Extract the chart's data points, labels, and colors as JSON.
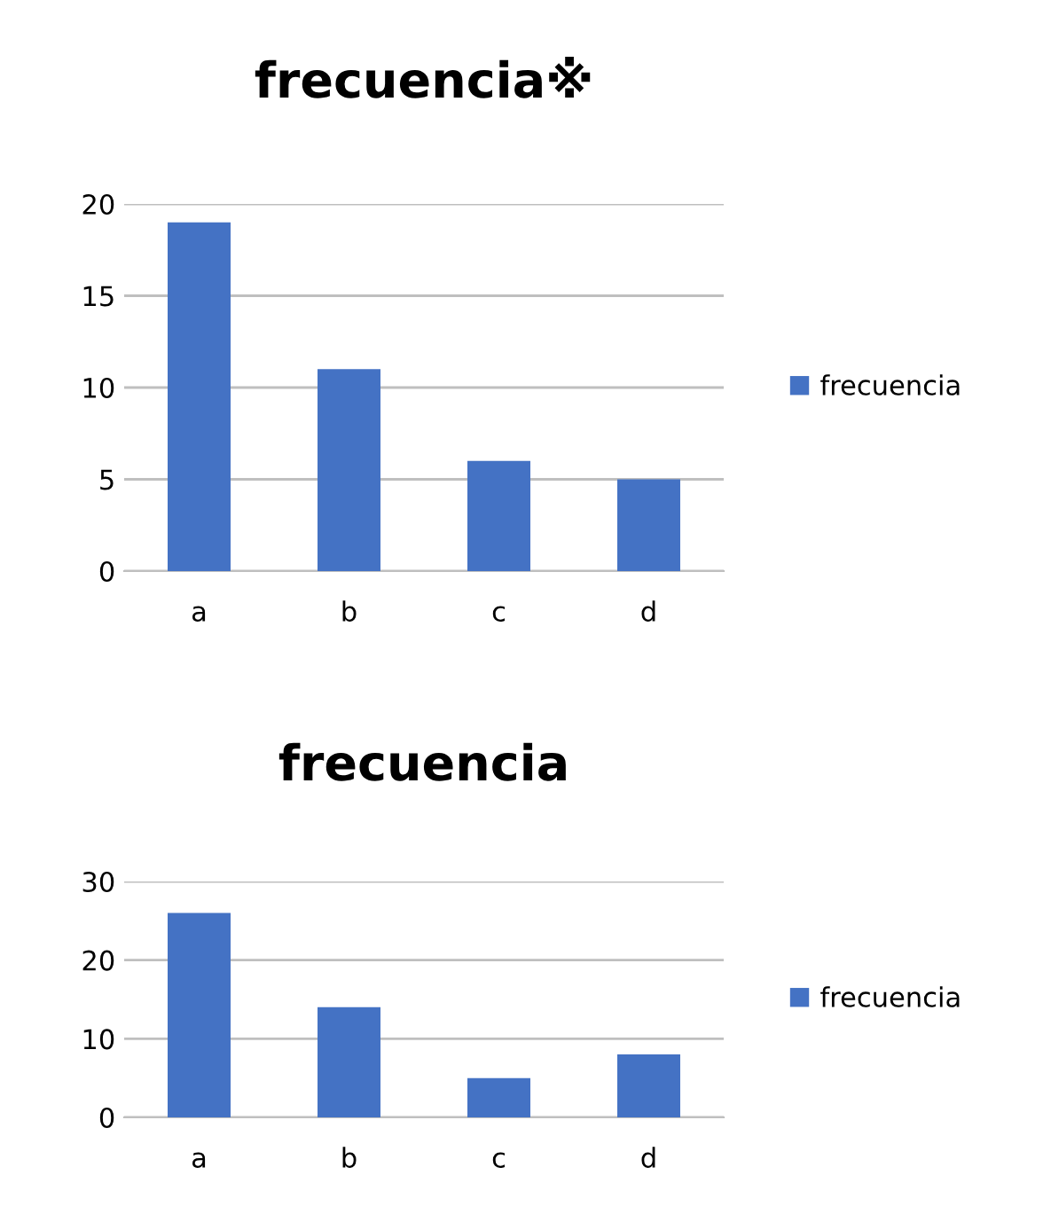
{
  "chart_data": [
    {
      "type": "bar",
      "title": "frecuencia※",
      "categories": [
        "a",
        "b",
        "c",
        "d"
      ],
      "series": [
        {
          "name": "frecuencia",
          "color": "#4472c4",
          "values": [
            19,
            11,
            6,
            5
          ]
        }
      ],
      "ylim": [
        0,
        20
      ],
      "yticks": [
        0,
        5,
        10,
        15,
        20
      ],
      "grid": "y",
      "legend": "right"
    },
    {
      "type": "bar",
      "title": "frecuencia",
      "categories": [
        "a",
        "b",
        "c",
        "d"
      ],
      "series": [
        {
          "name": "frecuencia",
          "color": "#4472c4",
          "values": [
            26,
            14,
            5,
            8
          ]
        }
      ],
      "ylim": [
        0,
        30
      ],
      "yticks": [
        0,
        10,
        20,
        30
      ],
      "grid": "y",
      "legend": "right"
    }
  ]
}
